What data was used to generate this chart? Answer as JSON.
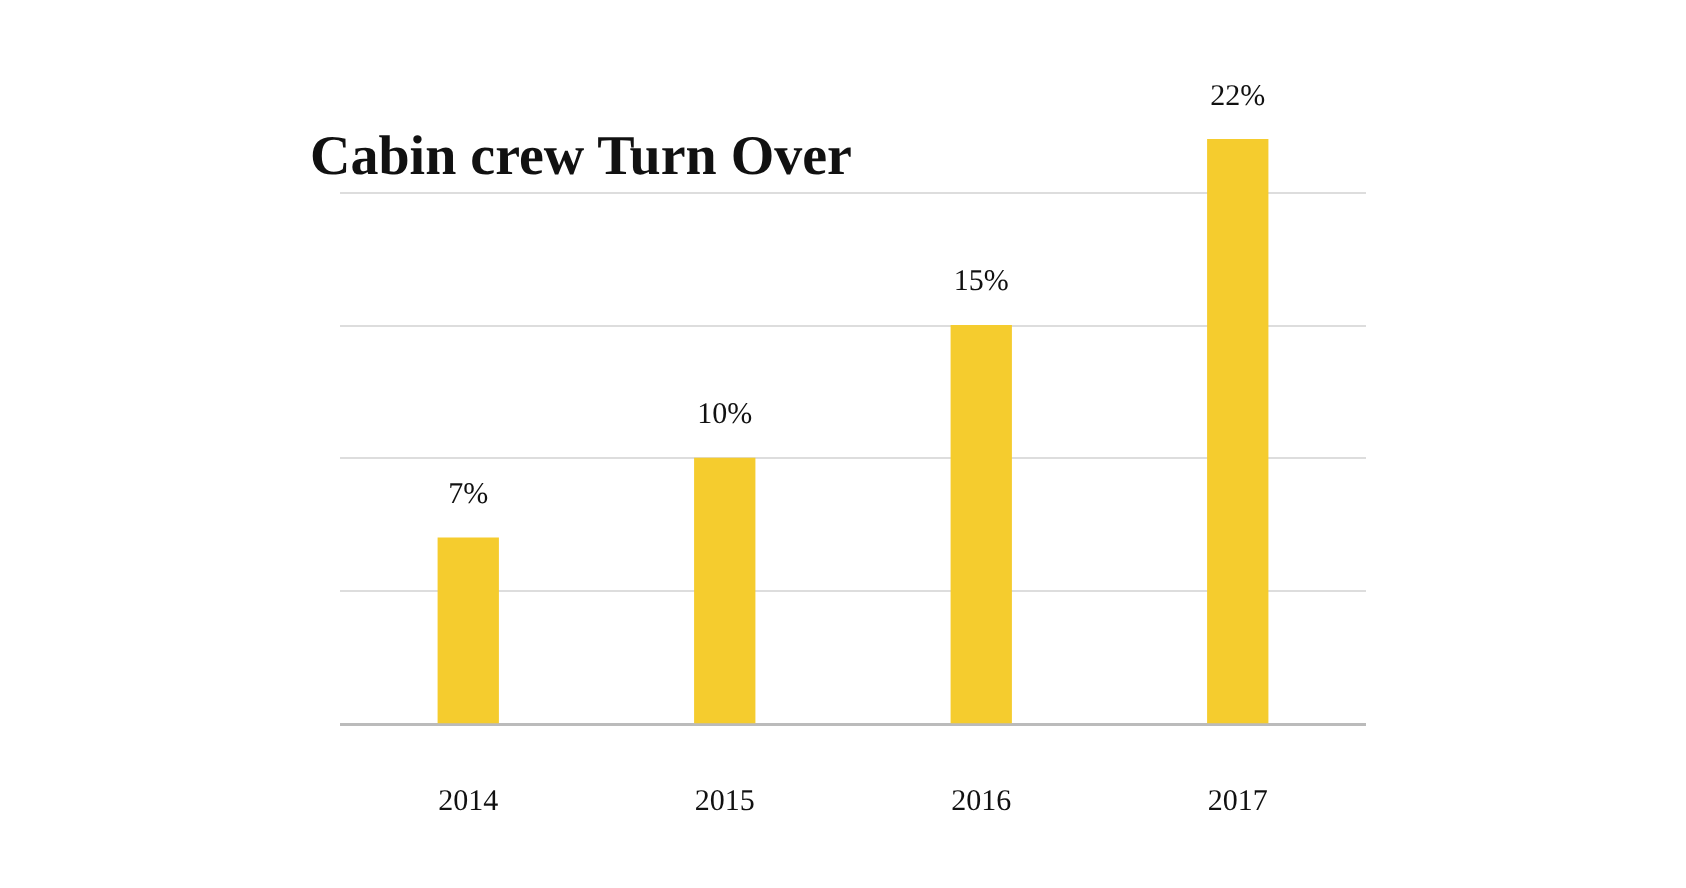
{
  "chart_data": {
    "type": "bar",
    "title": "Cabin crew Turn Over",
    "categories": [
      "2014",
      "2015",
      "2016",
      "2017"
    ],
    "values": [
      7,
      10,
      15,
      22
    ],
    "value_labels": [
      "7%",
      "10%",
      "15%",
      "22%"
    ],
    "color": "#f5cc2e",
    "yticks": [
      {
        "value": 0,
        "label": null
      },
      {
        "value": 5,
        "label": null
      },
      {
        "value": 10,
        "label": null
      },
      {
        "value": 15,
        "label": null
      },
      {
        "value": 20,
        "label": null
      }
    ],
    "grid": "y",
    "tick_labels": "x"
  }
}
